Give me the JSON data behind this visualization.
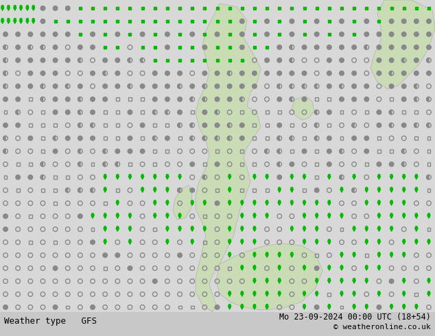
{
  "title_left": "Weather type   GFS",
  "title_right": "Mo 23-09-2024 00:00 UTC (18+54)",
  "copyright": "© weatheronline.co.uk",
  "bg_color": "#e0e0e0",
  "map_sea_color": "#d8d8d8",
  "map_land_color": "#c8ddb0",
  "green_color": "#00bb00",
  "grey_color": "#888888",
  "grey_dark": "#666666",
  "text_color": "#000000",
  "fig_width": 6.34,
  "fig_height": 4.9,
  "dpi": 100,
  "bottom_bar_color": "#c8c8c8"
}
